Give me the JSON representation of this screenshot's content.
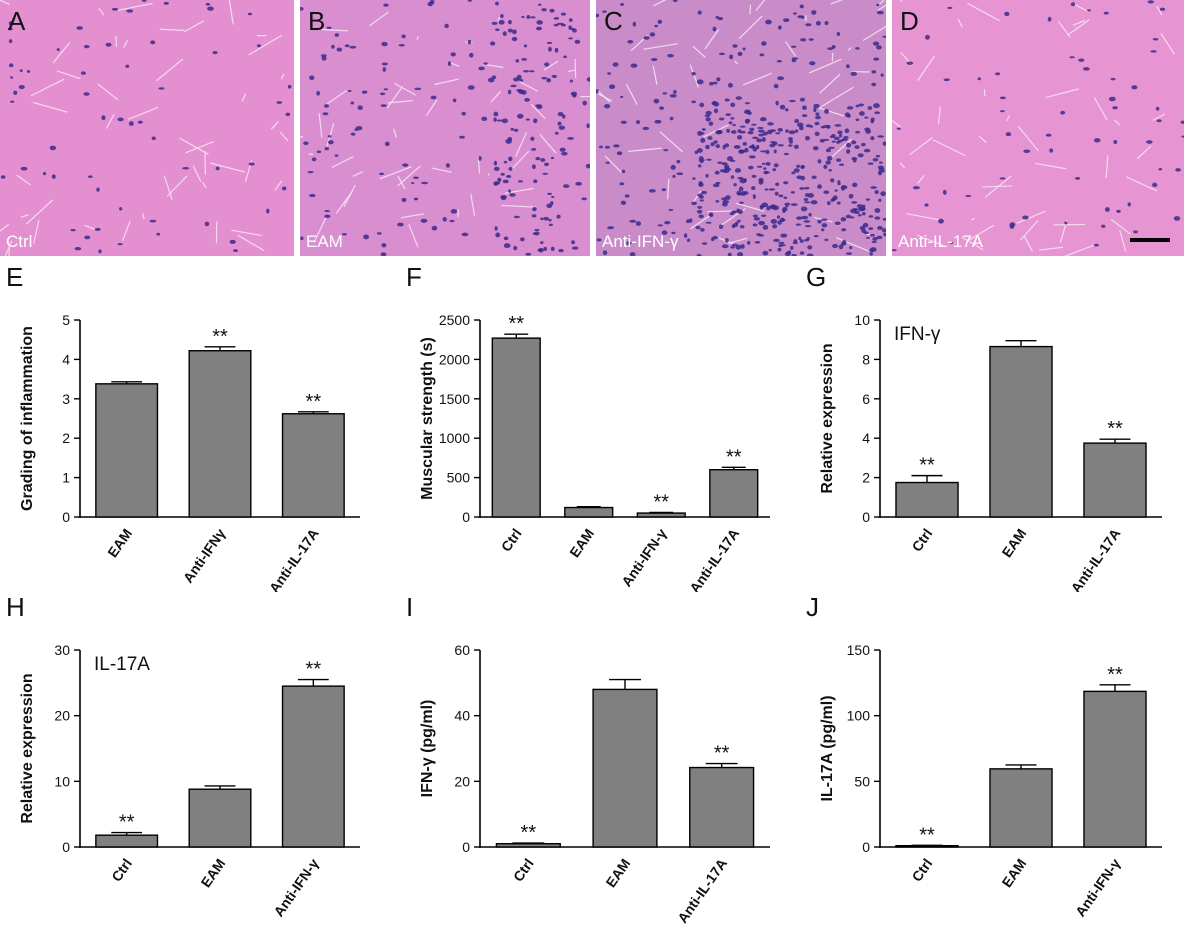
{
  "micrographs": [
    {
      "label": "A",
      "caption": "Ctrl",
      "tint": "#e48fcf",
      "cells": "sparse"
    },
    {
      "label": "B",
      "caption": "EAM",
      "tint": "#d98ed0",
      "cells": "moderate"
    },
    {
      "label": "C",
      "caption": "Anti-IFN-γ",
      "tint": "#c98cc9",
      "cells": "dense"
    },
    {
      "label": "D",
      "caption": "Anti-IL-17A",
      "tint": "#e694d2",
      "cells": "sparse"
    }
  ],
  "sig_mark": "**",
  "chart_data": [
    {
      "panel": "E",
      "type": "bar",
      "categories": [
        "EAM",
        "Anti-IFNγ",
        "Anti-IL-17A"
      ],
      "values": [
        3.38,
        4.22,
        2.62
      ],
      "errors": [
        0.05,
        0.1,
        0.05
      ],
      "sig": [
        false,
        true,
        true
      ],
      "ylabel": "Grading of inflammation",
      "ylim": [
        0,
        5
      ],
      "yticks": [
        "0",
        "1",
        "2",
        "3",
        "4",
        "5"
      ],
      "tick_values": [
        0,
        1,
        2,
        3,
        4,
        5
      ],
      "inner_label": "",
      "rotate": true
    },
    {
      "panel": "F",
      "type": "bar",
      "categories": [
        "Ctrl",
        "EAM",
        "Anti-IFN-γ",
        "Anti-IL-17A"
      ],
      "values": [
        2270,
        120,
        50,
        600
      ],
      "errors": [
        50,
        10,
        8,
        30
      ],
      "sig": [
        true,
        false,
        true,
        true
      ],
      "ylabel": "Muscular strength (s)",
      "ylim": [
        0,
        2500
      ],
      "yticks": [
        "0",
        "500",
        "1000",
        "1500",
        "2000",
        "2500"
      ],
      "tick_values": [
        0,
        500,
        1000,
        1500,
        2000,
        2500
      ],
      "inner_label": "",
      "rotate": true
    },
    {
      "panel": "G",
      "type": "bar",
      "categories": [
        "Ctrl",
        "EAM",
        "Anti-IL-17A"
      ],
      "values": [
        1.75,
        8.65,
        3.75
      ],
      "errors": [
        0.35,
        0.3,
        0.2
      ],
      "sig": [
        true,
        false,
        true
      ],
      "ylabel": "Relative expression",
      "ylim": [
        0,
        10
      ],
      "yticks": [
        "0",
        "2",
        "4",
        "6",
        "8",
        "10"
      ],
      "tick_values": [
        0,
        2,
        4,
        6,
        8,
        10
      ],
      "inner_label": "IFN-γ",
      "rotate": true
    },
    {
      "panel": "H",
      "type": "bar",
      "categories": [
        "Ctrl",
        "EAM",
        "Anti-IFN-γ"
      ],
      "values": [
        1.8,
        8.8,
        24.5
      ],
      "errors": [
        0.4,
        0.5,
        1.0
      ],
      "sig": [
        true,
        false,
        true
      ],
      "ylabel": "Relative expression",
      "ylim": [
        0,
        30
      ],
      "yticks": [
        "0",
        "10",
        "20",
        "30"
      ],
      "tick_values": [
        0,
        10,
        20,
        30
      ],
      "inner_label": "IL-17A",
      "rotate": true
    },
    {
      "panel": "I",
      "type": "bar",
      "categories": [
        "Ctrl",
        "EAM",
        "Anti-IL-17A"
      ],
      "values": [
        1.0,
        48.0,
        24.2
      ],
      "errors": [
        0.2,
        3.0,
        1.2
      ],
      "sig": [
        true,
        false,
        true
      ],
      "ylabel": "IFN-γ (pg/ml)",
      "ylim": [
        0,
        60
      ],
      "yticks": [
        "0",
        "20",
        "40",
        "60"
      ],
      "tick_values": [
        0,
        20,
        40,
        60
      ],
      "inner_label": "",
      "rotate": true
    },
    {
      "panel": "J",
      "type": "bar",
      "categories": [
        "Ctrl",
        "EAM",
        "Anti-IFN-γ"
      ],
      "values": [
        1.0,
        59.5,
        118.5
      ],
      "errors": [
        0.3,
        3.0,
        5.0
      ],
      "sig": [
        true,
        false,
        true
      ],
      "ylabel": "IL-17A (pg/ml)",
      "ylim": [
        0,
        150
      ],
      "yticks": [
        "0",
        "50",
        "100",
        "150"
      ],
      "tick_values": [
        0,
        50,
        100,
        150
      ],
      "inner_label": "",
      "rotate": true
    }
  ],
  "colors": {
    "bar": "#808080",
    "axis": "#000000"
  }
}
